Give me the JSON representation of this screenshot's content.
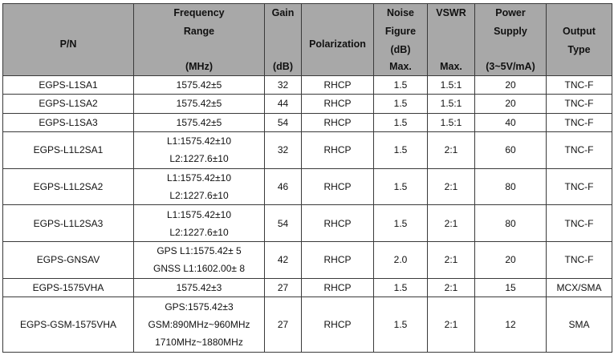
{
  "header": {
    "pn": "P/N",
    "freq": {
      "line1": "Frequency",
      "line2": "Range",
      "unit": "(MHz)"
    },
    "gain": {
      "line1": "Gain",
      "unit": "(dB)"
    },
    "polarization": "Polarization",
    "noise": {
      "line1": "Noise",
      "line2": "Figure",
      "line3": "(dB)",
      "line4": "Max."
    },
    "vswr": {
      "line1": "VSWR",
      "line2": "Max."
    },
    "power": {
      "line1": "Power",
      "line2": "Supply",
      "unit": "(3~5V/mA)"
    },
    "output": {
      "line1": "Output",
      "line2": "Type"
    }
  },
  "rows": [
    {
      "pn": "EGPS-L1SA1",
      "freq": [
        "1575.42±5"
      ],
      "gain": "32",
      "pol": "RHCP",
      "noise": "1.5",
      "vswr": "1.5:1",
      "power": "20",
      "output": "TNC-F"
    },
    {
      "pn": "EGPS-L1SA2",
      "freq": [
        "1575.42±5"
      ],
      "gain": "44",
      "pol": "RHCP",
      "noise": "1.5",
      "vswr": "1.5:1",
      "power": "20",
      "output": "TNC-F"
    },
    {
      "pn": "EGPS-L1SA3",
      "freq": [
        "1575.42±5"
      ],
      "gain": "54",
      "pol": "RHCP",
      "noise": "1.5",
      "vswr": "1.5:1",
      "power": "40",
      "output": "TNC-F"
    },
    {
      "pn": "EGPS-L1L2SA1",
      "freq": [
        "L1:1575.42±10",
        "L2:1227.6±10"
      ],
      "gain": "32",
      "pol": "RHCP",
      "noise": "1.5",
      "vswr": "2:1",
      "power": "60",
      "output": "TNC-F"
    },
    {
      "pn": "EGPS-L1L2SA2",
      "freq": [
        "L1:1575.42±10",
        "L2:1227.6±10"
      ],
      "gain": "46",
      "pol": "RHCP",
      "noise": "1.5",
      "vswr": "2:1",
      "power": "80",
      "output": "TNC-F"
    },
    {
      "pn": "EGPS-L1L2SA3",
      "freq": [
        "L1:1575.42±10",
        "L2:1227.6±10"
      ],
      "gain": "54",
      "pol": "RHCP",
      "noise": "1.5",
      "vswr": "2:1",
      "power": "80",
      "output": "TNC-F"
    },
    {
      "pn": "EGPS-GNSAV",
      "freq": [
        "GPS L1:1575.42± 5",
        "GNSS L1:1602.00± 8"
      ],
      "gain": "42",
      "pol": "RHCP",
      "noise": "2.0",
      "vswr": "2:1",
      "power": "20",
      "output": "TNC-F"
    },
    {
      "pn": "EGPS-1575VHA",
      "freq": [
        "1575.42±3"
      ],
      "gain": "27",
      "pol": "RHCP",
      "noise": "1.5",
      "vswr": "2:1",
      "power": "15",
      "output": "MCX/SMA"
    },
    {
      "pn": "EGPS-GSM-1575VHA",
      "freq": [
        "GPS:1575.42±3",
        "GSM:890MHz~960MHz",
        "1710MHz~1880MHz"
      ],
      "gain": "27",
      "pol": "RHCP",
      "noise": "1.5",
      "vswr": "2:1",
      "power": "12",
      "output": "SMA"
    }
  ]
}
